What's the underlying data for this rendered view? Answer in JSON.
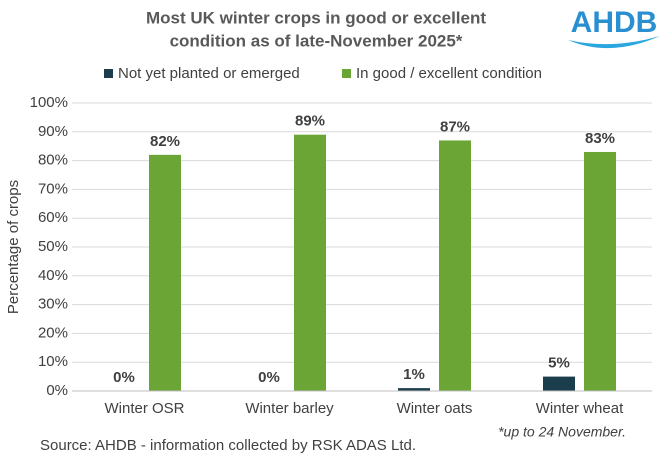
{
  "chart_data": {
    "type": "bar",
    "title": [
      "Most UK winter crops in good or excellent",
      "condition as of late-November 2025*"
    ],
    "logo": "AHDB",
    "y_label": "Percentage of crops",
    "categories": [
      "Winter OSR",
      "Winter barley",
      "Winter oats",
      "Winter wheat"
    ],
    "series": [
      {
        "name": "Not yet planted or emerged",
        "color": "#1b3d4c",
        "values": [
          0,
          0,
          1,
          5
        ],
        "value_labels": [
          "0%",
          "0%",
          "1%",
          "5%"
        ]
      },
      {
        "name": "In good / excellent condition",
        "color": "#6aa536",
        "values": [
          82,
          89,
          87,
          83
        ],
        "value_labels": [
          "82%",
          "89%",
          "87%",
          "83%"
        ]
      }
    ],
    "ylim": [
      0,
      100
    ],
    "yticks": [
      {
        "value": 0,
        "label": "0%"
      },
      {
        "value": 10,
        "label": "10%"
      },
      {
        "value": 20,
        "label": "20%"
      },
      {
        "value": 30,
        "label": "30%"
      },
      {
        "value": 40,
        "label": "40%"
      },
      {
        "value": 50,
        "label": "50%"
      },
      {
        "value": 60,
        "label": "60%"
      },
      {
        "value": 70,
        "label": "70%"
      },
      {
        "value": 80,
        "label": "80%"
      },
      {
        "value": 90,
        "label": "90%"
      },
      {
        "value": 100,
        "label": "100%"
      }
    ],
    "grid": true,
    "legend": "top",
    "source": "Source: AHDB - information collected by RSK ADAS Ltd.",
    "footnote": "*up to 24 November."
  }
}
